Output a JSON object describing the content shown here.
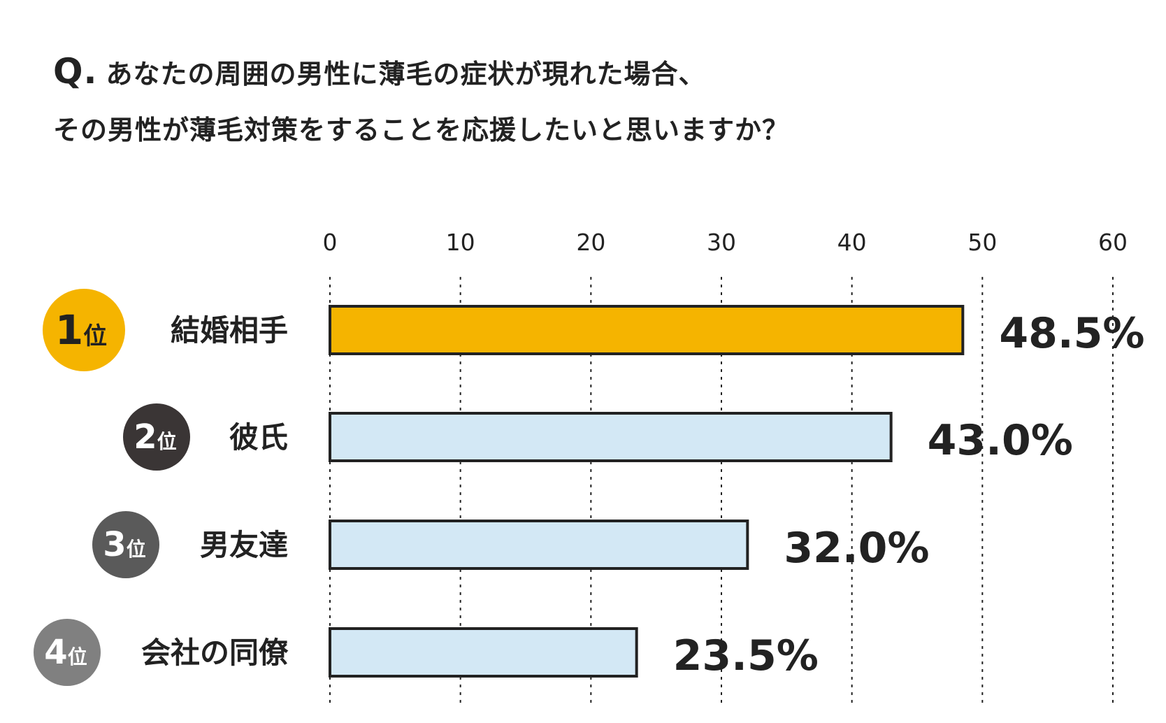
{
  "question": {
    "mark": "Q.",
    "line1": "あなたの周囲の男性に薄毛の症状が現れた場合、",
    "line2": "その男性が薄毛対策をすることを応援したいと思いますか？"
  },
  "chart_data": {
    "type": "bar",
    "orientation": "horizontal",
    "title": "",
    "xlabel": "",
    "ylabel": "",
    "xlim": [
      0,
      60
    ],
    "ticks": [
      0,
      10,
      20,
      30,
      40,
      50,
      60
    ],
    "grid": true,
    "categories": [
      "結婚相手",
      "彼氏",
      "男友達",
      "会社の同僚"
    ],
    "ranks": [
      {
        "num": "1",
        "suffix": "位",
        "color": "#F5B400"
      },
      {
        "num": "2",
        "suffix": "位",
        "color": "#3A3535"
      },
      {
        "num": "3",
        "suffix": "位",
        "color": "#5A5A5A"
      },
      {
        "num": "4",
        "suffix": "位",
        "color": "#808080"
      }
    ],
    "values": [
      48.5,
      43.0,
      32.0,
      23.5
    ],
    "value_labels": [
      "48.5%",
      "43.0%",
      "32.0%",
      "23.5%"
    ],
    "bar_colors": [
      "#F5B400",
      "#D3E8F5",
      "#D3E8F5",
      "#D3E8F5"
    ]
  }
}
